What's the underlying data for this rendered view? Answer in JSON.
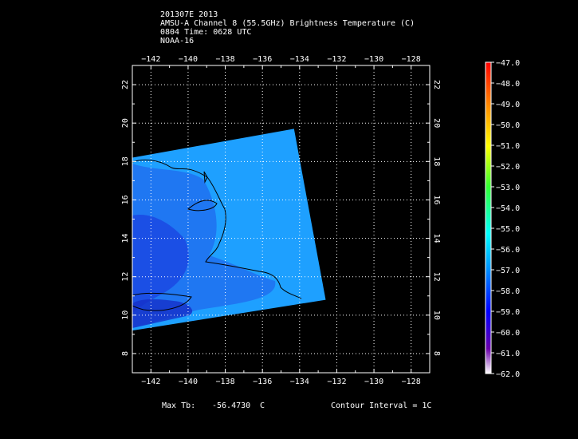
{
  "header": {
    "line1": "201307E 2013",
    "line2": "AMSU-A Channel 8 (55.5GHz) Brightness Temperature (C)",
    "line3": "0804 Time: 0628 UTC",
    "line4": "NOAA-16"
  },
  "footer": {
    "max_label": "Max Tb:",
    "max_value": "-56.4730",
    "max_unit": "C",
    "contour_label": "Contour Interval = 1C"
  },
  "colors": {
    "background": "#000000",
    "frame": "#ffffff",
    "swath_main": "#1ea0ff",
    "swath_low": "#1a3ee0"
  },
  "chart_data": {
    "type": "heatmap",
    "title": "AMSU-A Channel 8 (55.5GHz) Brightness Temperature (C)",
    "xlabel": "",
    "ylabel": "",
    "xlim": [
      -143,
      -127
    ],
    "ylim": [
      7,
      23
    ],
    "x_ticks": [
      -142,
      -140,
      -138,
      -136,
      -134,
      -132,
      -130,
      -128
    ],
    "y_ticks": [
      8,
      10,
      12,
      14,
      16,
      18,
      20,
      22
    ],
    "grid": true,
    "colorbar": {
      "min": -62.0,
      "max": -47.0,
      "labels": [
        "-47.0",
        "-48.0",
        "-49.0",
        "-50.0",
        "-51.0",
        "-52.0",
        "-53.0",
        "-54.0",
        "-55.0",
        "-56.0",
        "-57.0",
        "-58.0",
        "-59.0",
        "-60.0",
        "-61.0",
        "-62.0"
      ]
    },
    "swath_corners": [
      [
        -143,
        18.2
      ],
      [
        -134.3,
        19.7
      ],
      [
        -132.6,
        10.8
      ],
      [
        -143,
        9.2
      ]
    ],
    "max_tb": -56.473,
    "contour_interval": 1
  }
}
